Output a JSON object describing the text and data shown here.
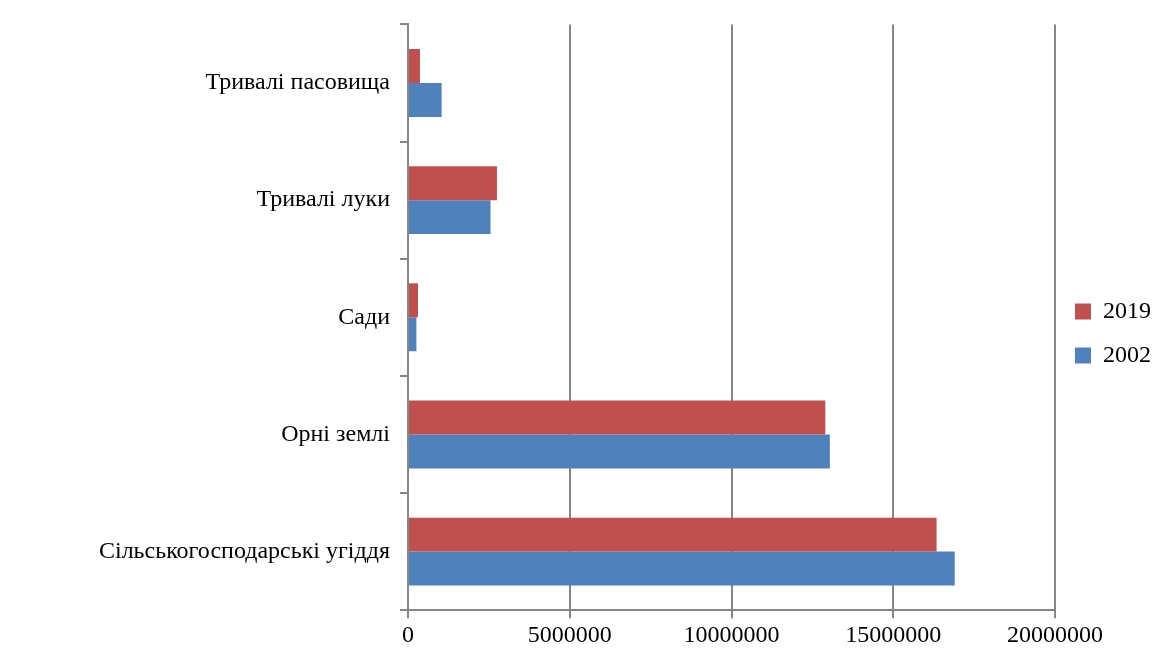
{
  "chart_data": {
    "type": "bar",
    "orientation": "horizontal",
    "categories": [
      "Тривалі пасовища",
      "Тривалі луки",
      "Сади",
      "Орні землі",
      "Сільськогосподарські угіддя"
    ],
    "series": [
      {
        "name": "2019",
        "color": "#c0504d",
        "values": [
          370000,
          2750000,
          310000,
          12900000,
          16340000
        ]
      },
      {
        "name": "2002",
        "color": "#4f81bd",
        "values": [
          1040000,
          2550000,
          260000,
          13040000,
          16900000
        ]
      }
    ],
    "xlim": [
      0,
      20000000
    ],
    "xticks": [
      0,
      5000000,
      10000000,
      15000000,
      20000000
    ],
    "grid": "x",
    "legend": "right"
  }
}
